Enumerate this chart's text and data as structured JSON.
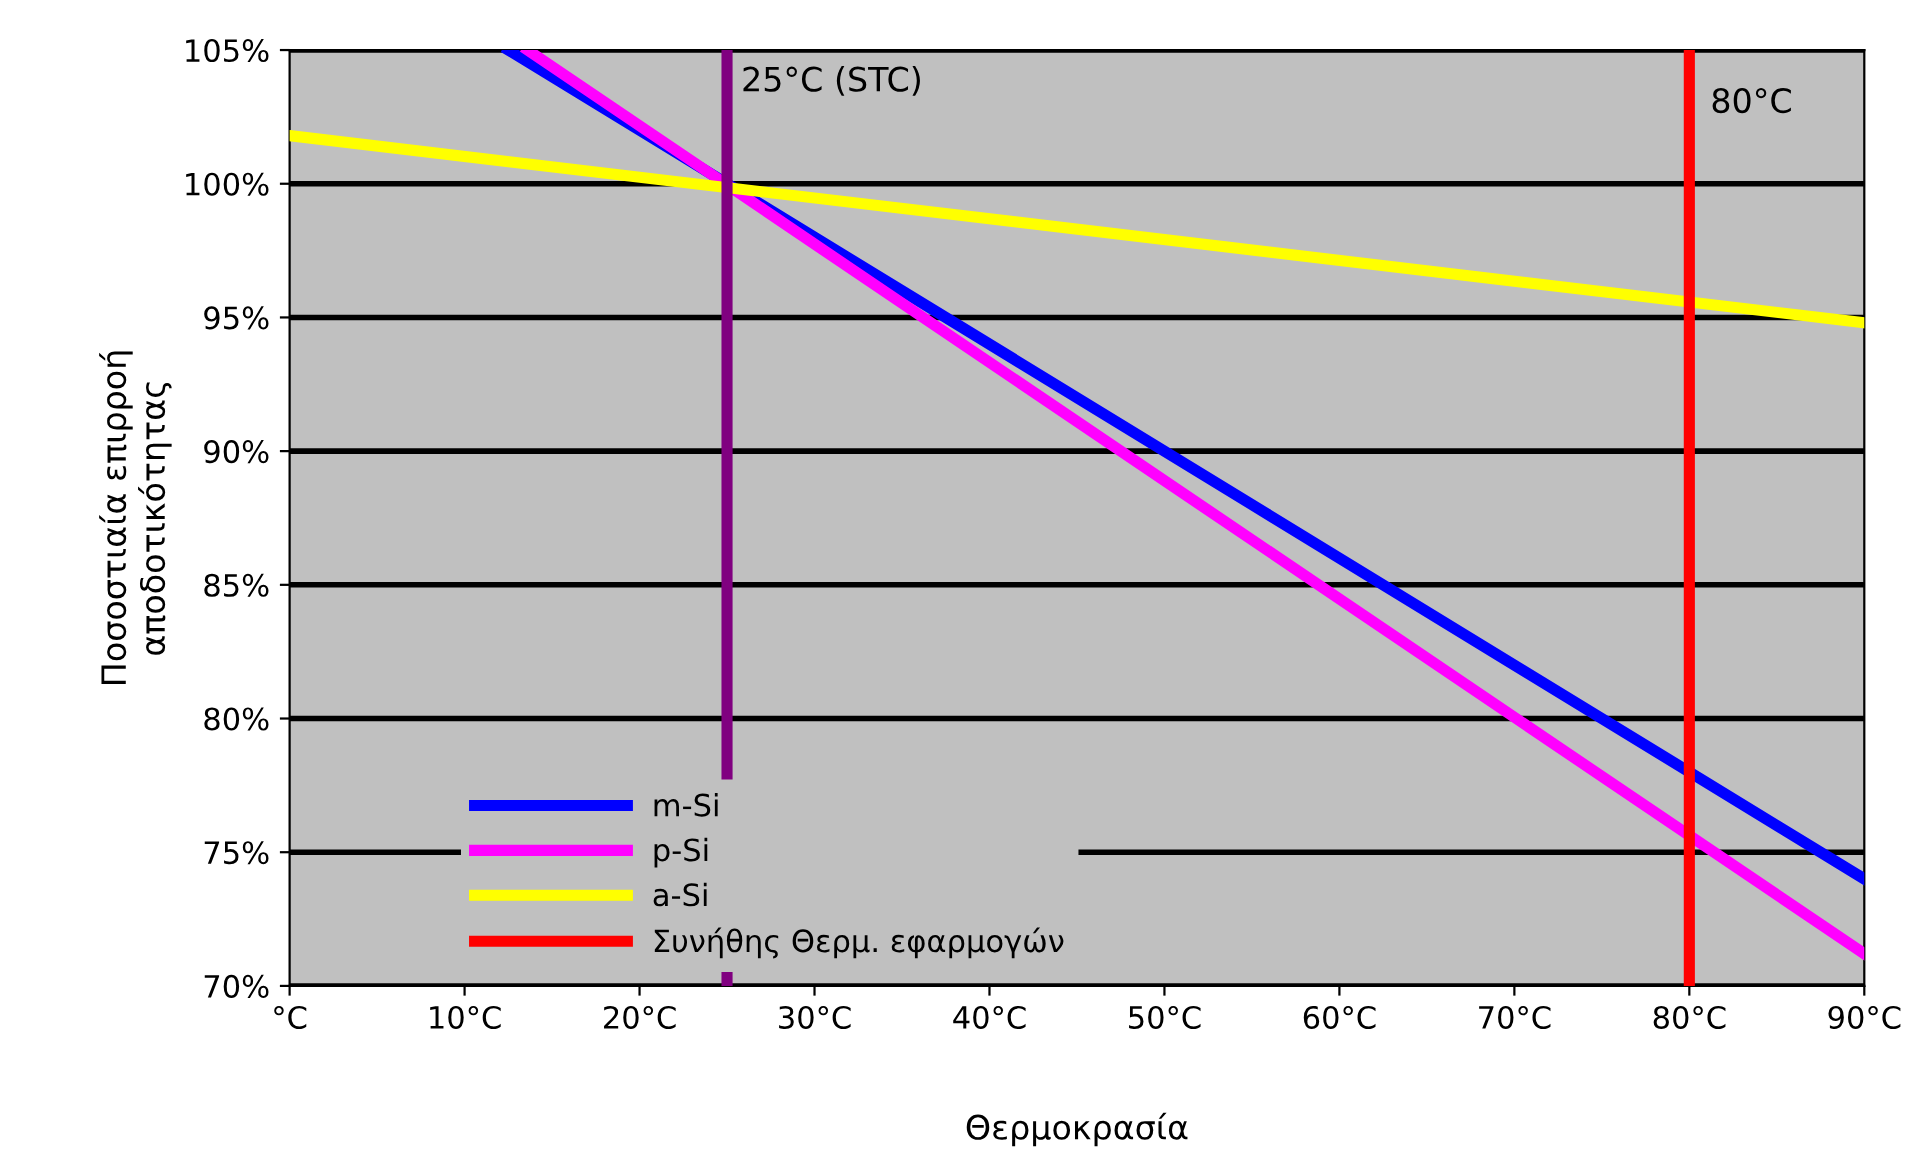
{
  "chart_data": {
    "type": "line",
    "xlabel": "Θερμοκρασία",
    "ylabel": "Ποσοστιαία επιρροή\nαποδοτικότητας",
    "x": [
      0,
      90
    ],
    "series": [
      {
        "name": "m-Si",
        "color": "#0000ff",
        "x": [
          12.5,
          90
        ],
        "values": [
          105,
          74
        ]
      },
      {
        "name": "p-Si",
        "color": "#ff00ff",
        "x": [
          13.6,
          90
        ],
        "values": [
          105,
          71.2
        ]
      },
      {
        "name": "a-Si",
        "color": "#ffff00",
        "values": [
          101.8,
          94.8
        ]
      },
      {
        "name": "Συνήθης Θερμ. εφαρμογών",
        "color": "#ff0000",
        "x": [
          80,
          80
        ],
        "values": [
          70,
          105
        ]
      }
    ],
    "ref_lines": [
      {
        "axis": "x",
        "value": 25,
        "label": "25°C (STC)",
        "color": "#800080"
      }
    ],
    "annotations": [
      {
        "text": "80°C",
        "x": 80,
        "y": 103
      }
    ],
    "xlim": [
      0,
      90
    ],
    "xticks": [
      {
        "value": 0,
        "label": "°C"
      },
      {
        "value": 10,
        "label": "10°C"
      },
      {
        "value": 20,
        "label": "20°C"
      },
      {
        "value": 30,
        "label": "30°C"
      },
      {
        "value": 40,
        "label": "40°C"
      },
      {
        "value": 50,
        "label": "50°C"
      },
      {
        "value": 60,
        "label": "60°C"
      },
      {
        "value": 70,
        "label": "70°C"
      },
      {
        "value": 80,
        "label": "80°C"
      },
      {
        "value": 90,
        "label": "90°C"
      }
    ],
    "ylim": [
      70,
      105
    ],
    "yticks": [
      {
        "value": 70,
        "label": "70%"
      },
      {
        "value": 75,
        "label": "75%"
      },
      {
        "value": 80,
        "label": "80%"
      },
      {
        "value": 85,
        "label": "85%"
      },
      {
        "value": 90,
        "label": "90%"
      },
      {
        "value": 95,
        "label": "95%"
      },
      {
        "value": 100,
        "label": "100%"
      },
      {
        "value": 105,
        "label": "105%"
      }
    ],
    "grid": "y",
    "legend": "bottom left"
  }
}
